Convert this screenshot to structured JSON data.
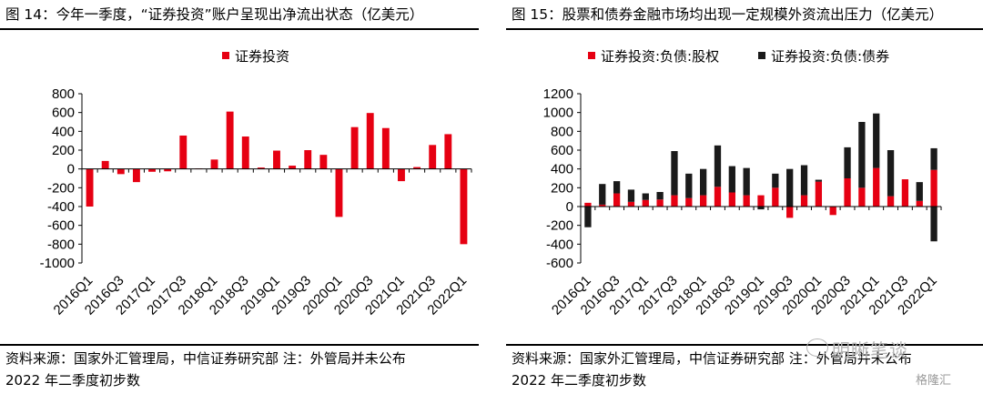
{
  "left": {
    "title": "图 14：今年一季度，“证券投资”账户呈现出净流出状态（亿美元）",
    "source": [
      "资料来源：国家外汇管理局，中信证券研究部  注：外管局并未公布",
      "2022 年二季度初步数"
    ]
  },
  "right": {
    "title": "图 15：股票和债券金融市场均出现一定规模外资流出压力（亿美元）",
    "source": [
      "资料来源：国家外汇管理局，中信证券研究部  注：外管局并未公布",
      "2022 年二季度初步数"
    ]
  },
  "watermark": {
    "text": "明晰笔谈",
    "badge": "格隆汇"
  },
  "colors": {
    "red": "#e60012",
    "black": "#1a1a1a"
  },
  "chart_data": [
    {
      "type": "bar",
      "categories": [
        "2016Q1",
        "2016Q2",
        "2016Q3",
        "2016Q4",
        "2017Q1",
        "2017Q2",
        "2017Q3",
        "2017Q4",
        "2018Q1",
        "2018Q2",
        "2018Q3",
        "2018Q4",
        "2019Q1",
        "2019Q2",
        "2019Q3",
        "2019Q4",
        "2020Q1",
        "2020Q2",
        "2020Q3",
        "2020Q4",
        "2021Q1",
        "2021Q2",
        "2021Q3",
        "2021Q4",
        "2022Q1"
      ],
      "tick_labels": [
        "2016Q1",
        "2016Q3",
        "2017Q1",
        "2017Q3",
        "2018Q1",
        "2018Q3",
        "2019Q1",
        "2019Q3",
        "2020Q1",
        "2020Q3",
        "2021Q1",
        "2021Q3",
        "2022Q1"
      ],
      "series": [
        {
          "name": "证券投资",
          "color": "#e60012",
          "values": [
            -400,
            85,
            -55,
            -140,
            -30,
            -25,
            355,
            5,
            100,
            610,
            345,
            15,
            195,
            35,
            200,
            150,
            -510,
            445,
            595,
            435,
            -130,
            20,
            255,
            370,
            -800
          ]
        }
      ],
      "ylim": [
        -1000,
        800
      ],
      "yticks": [
        -1000,
        -800,
        -600,
        -400,
        -200,
        0,
        200,
        400,
        600,
        800
      ],
      "legend": "top-left",
      "grid": false
    },
    {
      "type": "bar",
      "stacked": true,
      "categories": [
        "2016Q1",
        "2016Q2",
        "2016Q3",
        "2016Q4",
        "2017Q1",
        "2017Q2",
        "2017Q3",
        "2017Q4",
        "2018Q1",
        "2018Q2",
        "2018Q3",
        "2018Q4",
        "2019Q1",
        "2019Q2",
        "2019Q3",
        "2019Q4",
        "2020Q1",
        "2020Q2",
        "2020Q3",
        "2020Q4",
        "2021Q1",
        "2021Q2",
        "2021Q3",
        "2021Q4",
        "2022Q1"
      ],
      "tick_labels": [
        "2016Q1",
        "2016Q3",
        "2017Q1",
        "2017Q3",
        "2018Q1",
        "2018Q3",
        "2019Q1",
        "2019Q3",
        "2020Q1",
        "2020Q3",
        "2021Q1",
        "2021Q3",
        "2022Q1"
      ],
      "series": [
        {
          "name": "证券投资:负债:股权",
          "color": "#e60012",
          "values": [
            40,
            20,
            140,
            50,
            70,
            75,
            120,
            90,
            120,
            210,
            150,
            120,
            120,
            200,
            -120,
            120,
            265,
            -90,
            300,
            200,
            410,
            110,
            290,
            60,
            390
          ]
        },
        {
          "name": "证券投资:负债:债券",
          "color": "#1a1a1a",
          "values": [
            -220,
            220,
            130,
            130,
            70,
            80,
            470,
            260,
            280,
            440,
            280,
            290,
            -30,
            150,
            400,
            320,
            20,
            0,
            330,
            700,
            580,
            490,
            0,
            200,
            230
          ]
        },
        {
          "name": "",
          "color": "#1a1a1a",
          "hidden_in_legend": true,
          "values": [
            0,
            0,
            0,
            0,
            0,
            0,
            0,
            0,
            0,
            0,
            0,
            0,
            0,
            0,
            0,
            0,
            0,
            0,
            0,
            0,
            0,
            0,
            0,
            0,
            -370
          ]
        }
      ],
      "ylim": [
        -600,
        1200
      ],
      "yticks": [
        -600,
        -400,
        -200,
        0,
        200,
        400,
        600,
        800,
        1000,
        1200
      ],
      "legend": "top-left",
      "grid": false
    }
  ]
}
